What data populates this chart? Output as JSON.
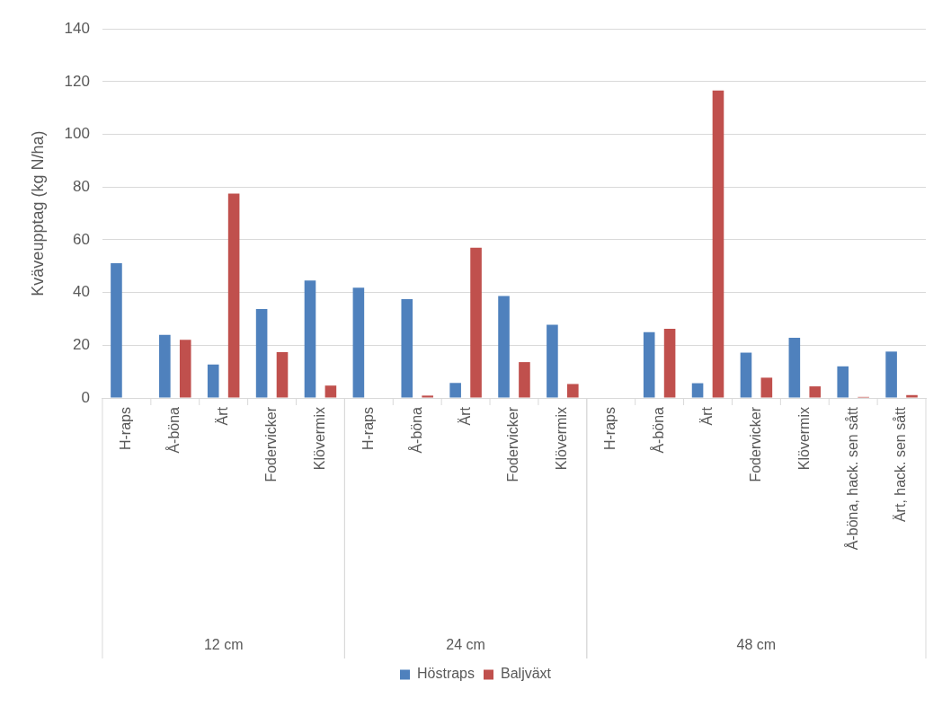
{
  "chart_data": {
    "type": "bar",
    "ylabel": "Kväveupptag (kg N/ha)",
    "categories": [
      "H-raps",
      "Å-böna",
      "Ärt",
      "Fodervicker",
      "Klövermix",
      "H-raps",
      "Å-böna",
      "Ärt",
      "Fodervicker",
      "Klövermix",
      "H-raps",
      "Å-böna",
      "Ärt",
      "Fodervicker",
      "Klövermix",
      "Å-böna, hack. sen sått",
      "Ärt, hack. sen sått"
    ],
    "series": [
      {
        "name": "Höstraps",
        "color": "#4f81bd",
        "values": [
          51.1,
          23.9,
          12.7,
          33.7,
          44.6,
          41.8,
          37.5,
          5.7,
          38.7,
          27.8,
          0,
          25.0,
          5.6,
          17.2,
          22.8,
          12.0,
          17.6
        ]
      },
      {
        "name": "Baljväxt",
        "color": "#c0504d",
        "values": [
          0,
          22.1,
          77.5,
          17.4,
          4.7,
          0,
          0.9,
          57.0,
          13.6,
          5.3,
          0,
          26.2,
          116.6,
          7.7,
          4.4,
          0.4,
          1.1
        ]
      }
    ],
    "annotations": [
      "12 cm",
      "24 cm",
      "48 cm"
    ],
    "ylim": [
      0,
      140
    ],
    "yticks": [
      0,
      20,
      40,
      60,
      80,
      100,
      120,
      140
    ],
    "grid": "y",
    "legend": "bottom"
  }
}
